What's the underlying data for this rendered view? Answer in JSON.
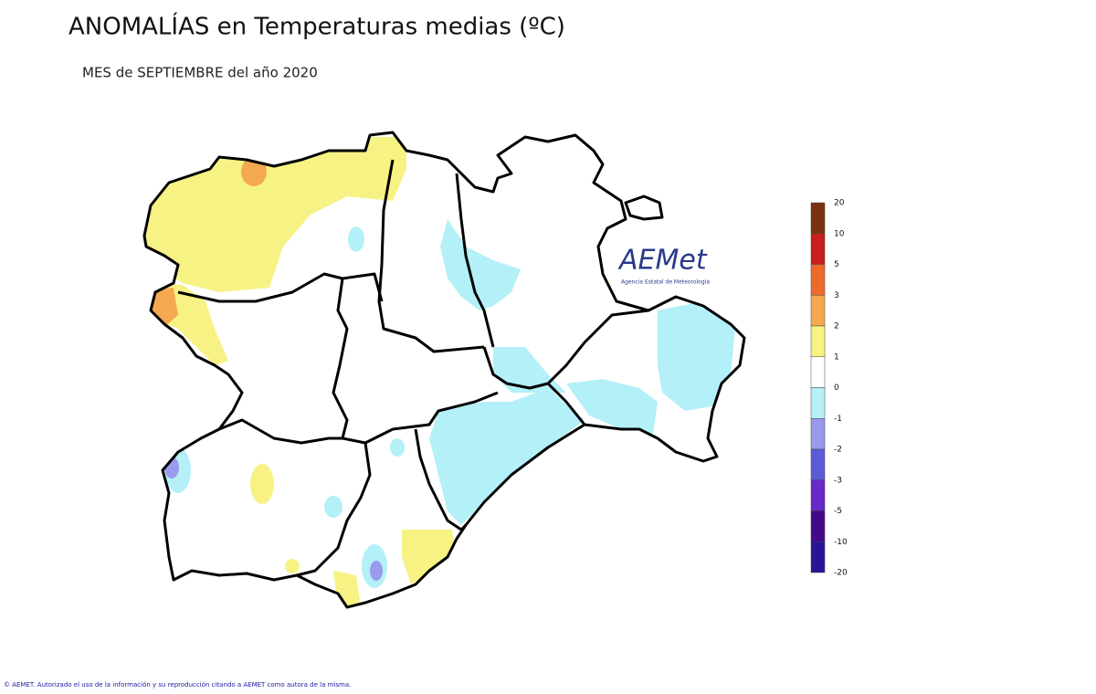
{
  "header": {
    "title": "ANOMALÍAS en Temperaturas medias (ºC)",
    "subtitle": "MES de SEPTIEMBRE del año 2020"
  },
  "logo": {
    "name": "AEMet",
    "caption": "Agencia Estatal de Meteorología"
  },
  "legend": {
    "ticks": [
      20,
      10,
      5,
      3,
      2,
      1,
      0,
      -1,
      -2,
      -3,
      -5,
      -10,
      -20
    ],
    "colors": [
      "#7a3212",
      "#c81e1e",
      "#ee6a2c",
      "#f4a850",
      "#f7f284",
      "#ffffff",
      "#b4f0f8",
      "#9a9aec",
      "#5c5cd8",
      "#6a28c8",
      "#440a88",
      "#2c1496"
    ]
  },
  "footer": "© AEMET. Autorizado el uso de la información y su reproducción citando a AEMET como autora de la misma."
}
